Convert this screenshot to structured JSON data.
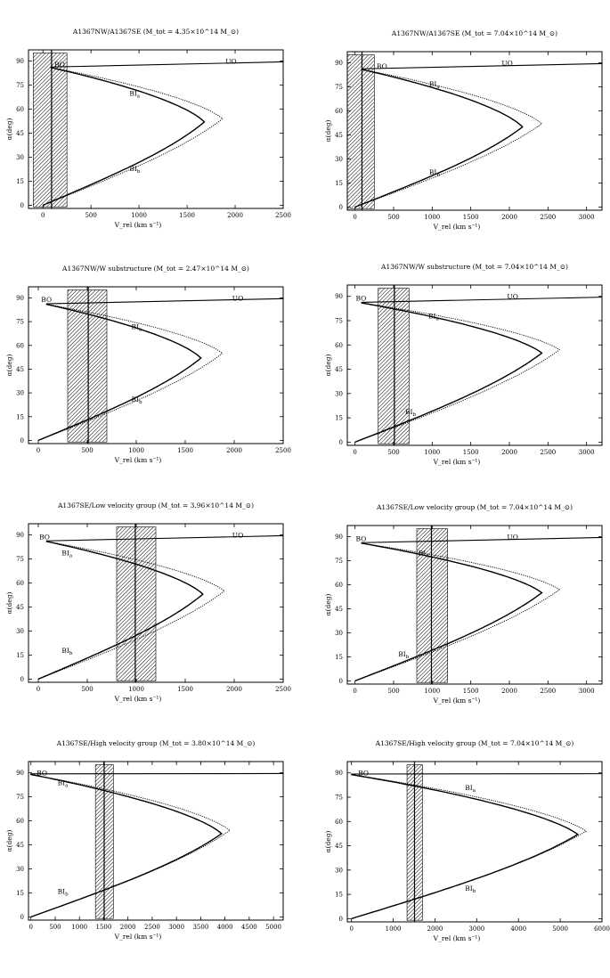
{
  "chart_data": [
    {
      "type": "line",
      "title": "A1367NW/A1367SE (M_tot = 4.35×10^14 M_⊙)",
      "xlabel": "V_rel (km s⁻¹)",
      "ylabel": "α(deg)",
      "xlim": [
        -150,
        2500
      ],
      "ylim": [
        -2,
        97
      ],
      "xticks": [
        0,
        500,
        1000,
        1500,
        2000,
        2500
      ],
      "yticks": [
        0,
        15,
        30,
        45,
        60,
        75,
        90
      ],
      "x_obs": 90,
      "band": [
        -100,
        250
      ],
      "series": [
        {
          "name": "solution (solid)",
          "vmax": 1680,
          "tip_alpha": 52,
          "alpha_end": 86,
          "bo_v": 80
        },
        {
          "name": "solution (dotted)",
          "vmax": 1870,
          "tip_alpha": 54,
          "alpha_end": 86,
          "bo_v": 80
        }
      ],
      "labels": [
        {
          "text": "BO",
          "v": 120,
          "alpha": 88
        },
        {
          "text": "UO",
          "v": 1900,
          "alpha": 90
        },
        {
          "text": "BIa",
          "v": 900,
          "alpha": 70
        },
        {
          "text": "BIb",
          "v": 900,
          "alpha": 23
        }
      ]
    },
    {
      "type": "line",
      "title": "A1367NW/A1367SE (M_tot = 7.04×10^14 M_⊙)",
      "xlabel": "V_rel (km s⁻¹)",
      "ylabel": "α(deg)",
      "xlim": [
        -100,
        3200
      ],
      "ylim": [
        -2,
        97
      ],
      "xticks": [
        0,
        500,
        1000,
        1500,
        2000,
        2500,
        3000
      ],
      "yticks": [
        0,
        15,
        30,
        45,
        60,
        75,
        90
      ],
      "x_obs": 90,
      "band": [
        -100,
        250
      ],
      "series": [
        {
          "name": "solution (solid)",
          "vmax": 2170,
          "tip_alpha": 50,
          "alpha_end": 86,
          "bo_v": 80
        },
        {
          "name": "solution (dotted)",
          "vmax": 2420,
          "tip_alpha": 52,
          "alpha_end": 86,
          "bo_v": 80
        }
      ],
      "labels": [
        {
          "text": "BO",
          "v": 280,
          "alpha": 88
        },
        {
          "text": "UO",
          "v": 1900,
          "alpha": 90
        },
        {
          "text": "BIa",
          "v": 960,
          "alpha": 77
        },
        {
          "text": "BIb",
          "v": 960,
          "alpha": 22
        }
      ]
    },
    {
      "type": "line",
      "title": "A1367NW/W substructure (M_tot = 2.47×10^14 M_⊙)",
      "xlabel": "V_rel (km s⁻¹)",
      "ylabel": "α(deg)",
      "xlim": [
        -100,
        2500
      ],
      "ylim": [
        -2,
        97
      ],
      "xticks": [
        0,
        500,
        1000,
        1500,
        2000,
        2500
      ],
      "yticks": [
        0,
        15,
        30,
        45,
        60,
        75,
        90
      ],
      "x_obs": 510,
      "band": [
        300,
        700
      ],
      "series": [
        {
          "name": "solution (solid)",
          "vmax": 1660,
          "tip_alpha": 52,
          "alpha_end": 86,
          "bo_v": 80
        },
        {
          "name": "solution (dotted)",
          "vmax": 1880,
          "tip_alpha": 55,
          "alpha_end": 86,
          "bo_v": 80
        }
      ],
      "labels": [
        {
          "text": "BO",
          "v": 30,
          "alpha": 89
        },
        {
          "text": "UO",
          "v": 1980,
          "alpha": 90
        },
        {
          "text": "BIa",
          "v": 950,
          "alpha": 72
        },
        {
          "text": "BIb",
          "v": 950,
          "alpha": 26
        }
      ]
    },
    {
      "type": "line",
      "title": "A1367NW/W substructure (M_tot = 7.04×10^14 M_⊙)",
      "xlabel": "V_rel (km s⁻¹)",
      "ylabel": "α(deg)",
      "xlim": [
        -100,
        3200
      ],
      "ylim": [
        -2,
        97
      ],
      "xticks": [
        0,
        500,
        1000,
        1500,
        2000,
        2500,
        3000
      ],
      "yticks": [
        0,
        15,
        30,
        45,
        60,
        75,
        90
      ],
      "x_obs": 510,
      "band": [
        300,
        700
      ],
      "series": [
        {
          "name": "solution (solid)",
          "vmax": 2420,
          "tip_alpha": 55,
          "alpha_end": 86,
          "bo_v": 80
        },
        {
          "name": "solution (dotted)",
          "vmax": 2650,
          "tip_alpha": 57,
          "alpha_end": 86,
          "bo_v": 80
        }
      ],
      "labels": [
        {
          "text": "BO",
          "v": 10,
          "alpha": 89
        },
        {
          "text": "UO",
          "v": 1970,
          "alpha": 90
        },
        {
          "text": "BIa",
          "v": 950,
          "alpha": 78
        },
        {
          "text": "BIb",
          "v": 650,
          "alpha": 19
        }
      ]
    },
    {
      "type": "line",
      "title": "A1367SE/Low velocity group (M_tot = 3.96×10^14 M_⊙)",
      "xlabel": "V_rel (km s⁻¹)",
      "ylabel": "α(deg)",
      "xlim": [
        -100,
        2500
      ],
      "ylim": [
        -2,
        97
      ],
      "xticks": [
        0,
        500,
        1000,
        1500,
        2000,
        2500
      ],
      "yticks": [
        0,
        15,
        30,
        45,
        60,
        75,
        90
      ],
      "x_obs": 990,
      "band": [
        800,
        1200
      ],
      "series": [
        {
          "name": "solution (solid)",
          "vmax": 1680,
          "tip_alpha": 53,
          "alpha_end": 86,
          "bo_v": 80
        },
        {
          "name": "solution (dotted)",
          "vmax": 1900,
          "tip_alpha": 55,
          "alpha_end": 86,
          "bo_v": 80
        }
      ],
      "labels": [
        {
          "text": "BO",
          "v": 10,
          "alpha": 89
        },
        {
          "text": "UO",
          "v": 1980,
          "alpha": 90
        },
        {
          "text": "BIa",
          "v": 240,
          "alpha": 79
        },
        {
          "text": "BIb",
          "v": 240,
          "alpha": 18
        }
      ]
    },
    {
      "type": "line",
      "title": "A1367SE/Low velocity group (M_tot = 7.04×10^14 M_⊙)",
      "xlabel": "V_rel (km s⁻¹)",
      "ylabel": "α(deg)",
      "xlim": [
        -100,
        3200
      ],
      "ylim": [
        -2,
        97
      ],
      "xticks": [
        0,
        500,
        1000,
        1500,
        2000,
        2500,
        3000
      ],
      "yticks": [
        0,
        15,
        30,
        45,
        60,
        75,
        90
      ],
      "x_obs": 990,
      "band": [
        800,
        1200
      ],
      "series": [
        {
          "name": "solution (solid)",
          "vmax": 2420,
          "tip_alpha": 55,
          "alpha_end": 86,
          "bo_v": 80
        },
        {
          "name": "solution (dotted)",
          "vmax": 2650,
          "tip_alpha": 57,
          "alpha_end": 86,
          "bo_v": 80
        }
      ],
      "labels": [
        {
          "text": "BO",
          "v": 10,
          "alpha": 89
        },
        {
          "text": "UO",
          "v": 1970,
          "alpha": 90
        },
        {
          "text": "BIa",
          "v": 820,
          "alpha": 80
        },
        {
          "text": "BIb",
          "v": 560,
          "alpha": 17
        }
      ]
    },
    {
      "type": "line",
      "title": "A1367SE/High velocity group (M_tot = 3.80×10^14 M_⊙)",
      "xlabel": "V_rel (km s⁻¹)",
      "ylabel": "α(deg)",
      "xlim": [
        -50,
        5200
      ],
      "ylim": [
        -2,
        97
      ],
      "xticks": [
        0,
        500,
        1000,
        1500,
        2000,
        2500,
        3000,
        3500,
        4000,
        4500,
        5000
      ],
      "yticks": [
        0,
        15,
        30,
        45,
        60,
        75,
        90
      ],
      "x_obs": 1510,
      "band": [
        1330,
        1700
      ],
      "series": [
        {
          "name": "solution (solid)",
          "vmax": 3930,
          "tip_alpha": 52,
          "alpha_end": 89,
          "bo_v": -10
        },
        {
          "name": "solution (dotted)",
          "vmax": 4100,
          "tip_alpha": 54,
          "alpha_end": 89,
          "bo_v": -10
        }
      ],
      "labels": [
        {
          "text": "BO",
          "v": 120,
          "alpha": 90
        },
        {
          "text": "BIa",
          "v": 550,
          "alpha": 84
        },
        {
          "text": "BIb",
          "v": 550,
          "alpha": 16
        }
      ]
    },
    {
      "type": "line",
      "title": "A1367SE/High velocity group (M_tot = 7.04×10^14 M_⊙)",
      "xlabel": "V_rel (km s⁻¹)",
      "ylabel": "α(deg)",
      "xlim": [
        -100,
        6000
      ],
      "ylim": [
        -2,
        97
      ],
      "xticks": [
        0,
        1000,
        2000,
        3000,
        4000,
        5000,
        6000
      ],
      "yticks": [
        0,
        15,
        30,
        45,
        60,
        75,
        90
      ],
      "x_obs": 1510,
      "band": [
        1330,
        1700
      ],
      "series": [
        {
          "name": "solution (solid)",
          "vmax": 5420,
          "tip_alpha": 52,
          "alpha_end": 89,
          "bo_v": -10
        },
        {
          "name": "solution (dotted)",
          "vmax": 5620,
          "tip_alpha": 54,
          "alpha_end": 89,
          "bo_v": -10
        }
      ],
      "labels": [
        {
          "text": "BO",
          "v": 160,
          "alpha": 90
        },
        {
          "text": "BIa",
          "v": 2720,
          "alpha": 81
        },
        {
          "text": "BIb",
          "v": 2720,
          "alpha": 19
        }
      ]
    }
  ]
}
